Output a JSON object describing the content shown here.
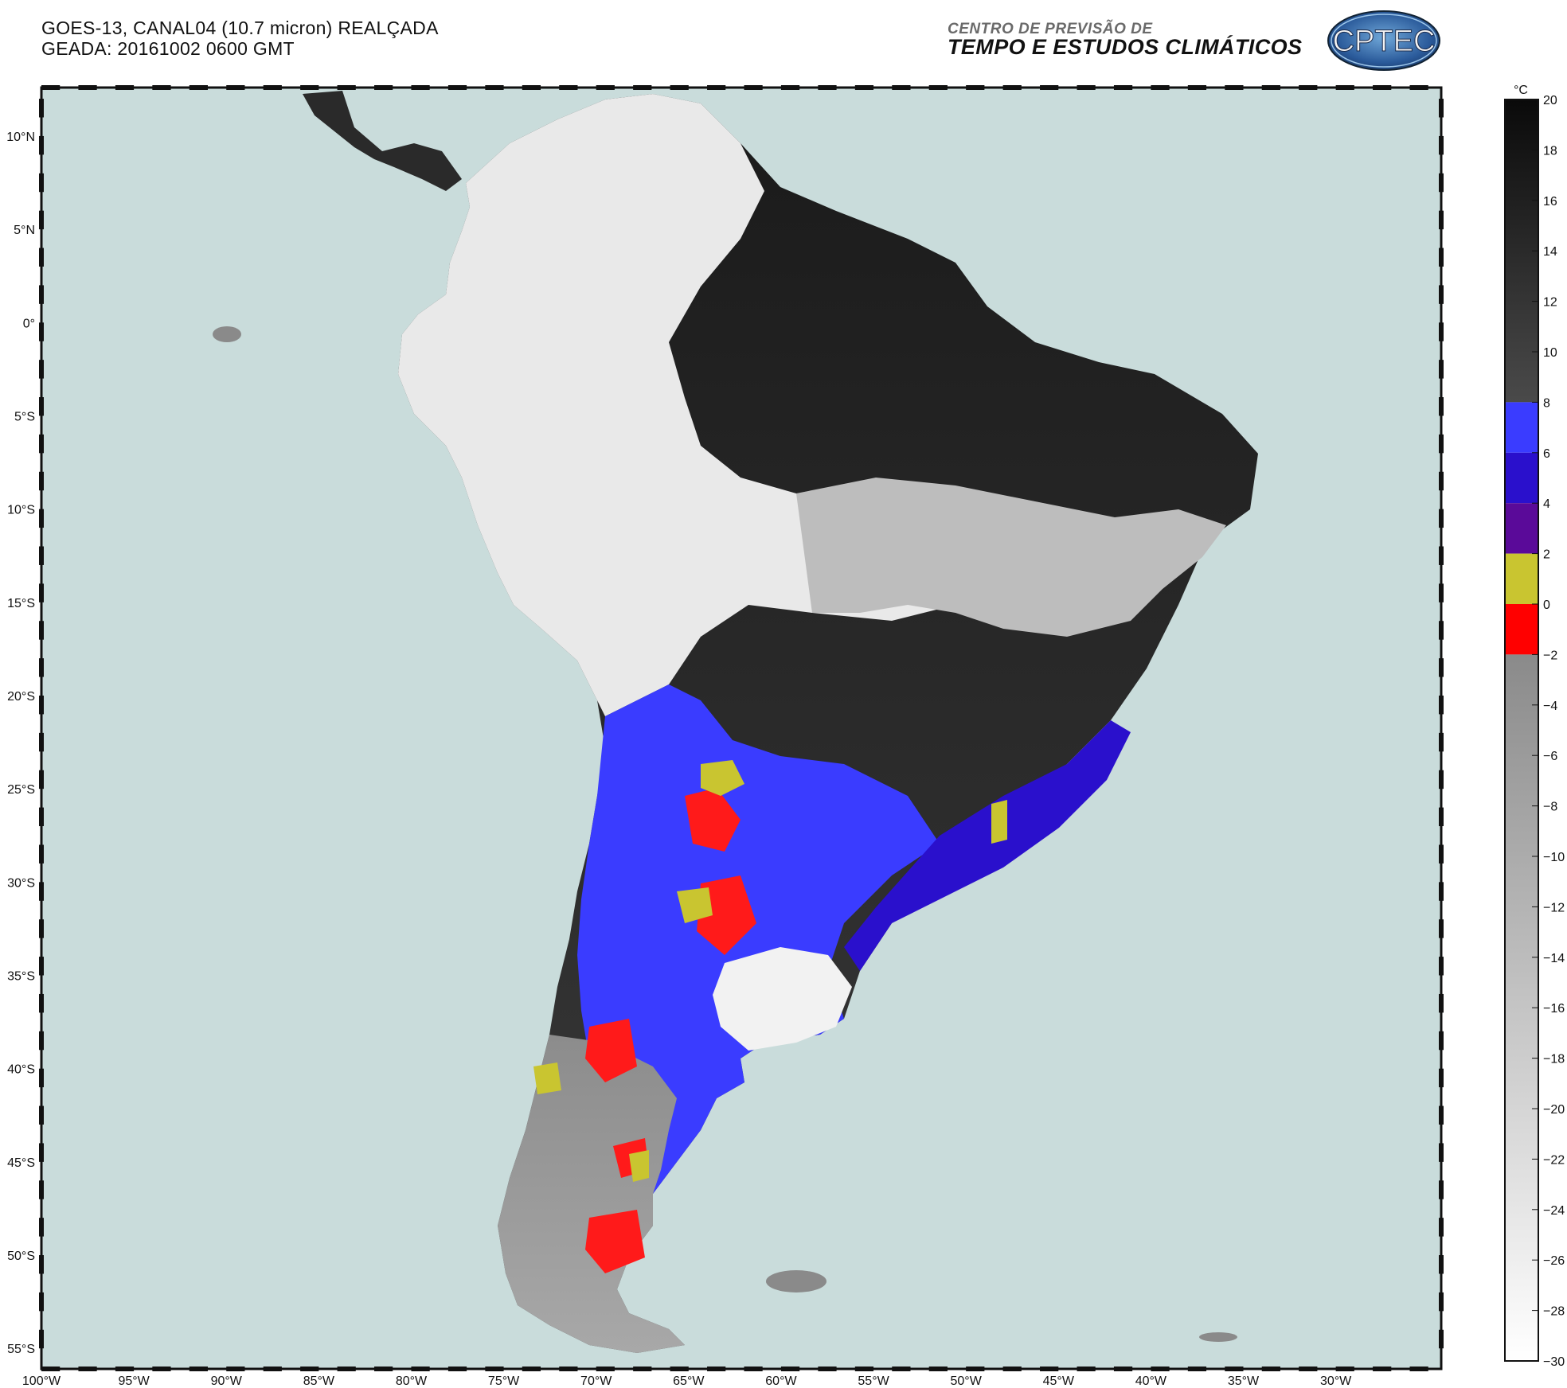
{
  "header": {
    "line1": "GOES-13, CANAL04 (10.7 micron) REALÇADA",
    "line2": "GEADA: 20161002 0600 GMT"
  },
  "organization": {
    "line1": "CENTRO DE PREVISÃO DE",
    "line2": "TEMPO E ESTUDOS CLIMÁTICOS",
    "logo_text": "CPTEC"
  },
  "map": {
    "lat_labels": [
      "10°N",
      "5°N",
      "0°",
      "5°S",
      "10°S",
      "15°S",
      "20°S",
      "25°S",
      "30°S",
      "35°S",
      "40°S",
      "45°S",
      "50°S",
      "55°S"
    ],
    "lon_labels": [
      "100°W",
      "95°W",
      "90°W",
      "85°W",
      "80°W",
      "75°W",
      "70°W",
      "65°W",
      "60°W",
      "55°W",
      "50°W",
      "45°W",
      "40°W",
      "35°W",
      "30°W"
    ],
    "ocean_color": "#c9dcdb",
    "frame_color": "#111111"
  },
  "colorbar": {
    "unit": "°C",
    "tick_labels": [
      "20",
      "18",
      "16",
      "14",
      "12",
      "10",
      "8",
      "6",
      "4",
      "2",
      "0",
      "-2",
      "-4",
      "-6",
      "-8",
      "-10",
      "-12",
      "-14",
      "-16",
      "-18",
      "-20",
      "-22",
      "-24",
      "-26",
      "-28",
      "-30"
    ],
    "bands": [
      {
        "from": 20,
        "to": 8,
        "color_top": "#0a0a0a",
        "color_bottom": "#4a4a4a"
      },
      {
        "from": 8,
        "to": 6,
        "color": "#3a3cff"
      },
      {
        "from": 6,
        "to": 4,
        "color": "#2a10cc"
      },
      {
        "from": 4,
        "to": 2,
        "color": "#5a0a99"
      },
      {
        "from": 2,
        "to": 0,
        "color": "#c9c530"
      },
      {
        "from": 0,
        "to": -2,
        "color": "#ff0000"
      },
      {
        "from": -2,
        "to": -30,
        "color_top": "#8a8a8a",
        "color_bottom": "#ffffff"
      }
    ]
  }
}
